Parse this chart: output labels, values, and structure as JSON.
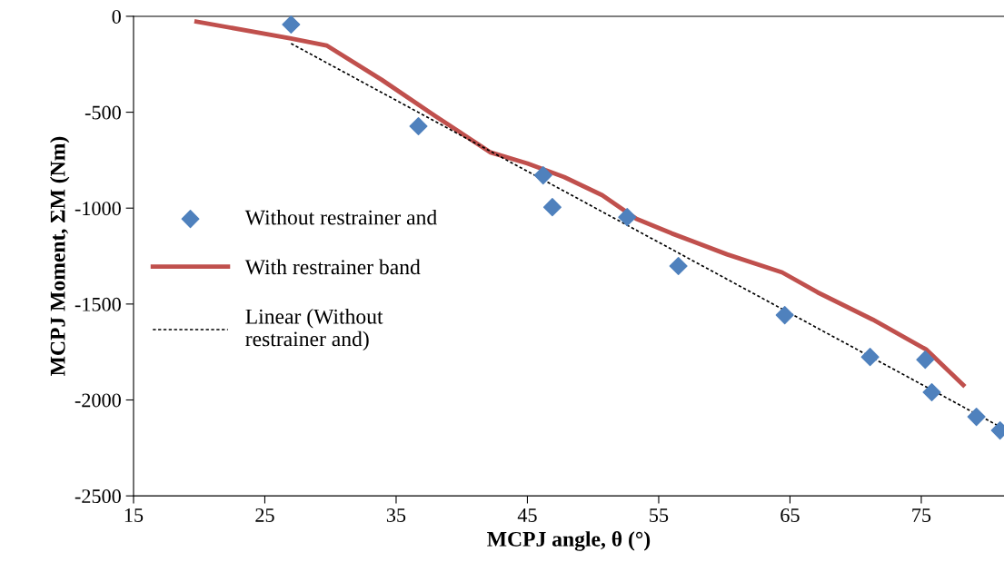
{
  "chart_data": {
    "type": "scatter",
    "xlabel": "MCPJ angle, θ (°)",
    "ylabel": "MCPJ Moment, ΣM (Nm)",
    "xlim": [
      15,
      81.3
    ],
    "xticks": [
      15,
      25,
      35,
      45,
      55,
      65,
      75
    ],
    "ylim": [
      -2500,
      0
    ],
    "yticks": [
      -2500,
      -2000,
      -1500,
      -1000,
      -500,
      0
    ],
    "grid": false,
    "legend": "left",
    "series": [
      {
        "name": "Without restrainer and",
        "marker": "diamond",
        "color": "#4f81bd",
        "x": [
          27.0,
          36.7,
          46.2,
          46.9,
          52.6,
          56.5,
          64.6,
          71.1,
          75.3,
          75.8,
          79.2,
          81.0
        ],
        "values": [
          -43,
          -573,
          -829,
          -995,
          -1047,
          -1302,
          -1558,
          -1776,
          -1790,
          -1960,
          -2088,
          -2159
        ]
      },
      {
        "name": "With restrainer band",
        "type": "line",
        "marker": "none",
        "line_style": "solid",
        "color": "#c0504d",
        "x": [
          19.8,
          26.9,
          29.7,
          33.9,
          38.0,
          42.2,
          45.0,
          47.8,
          50.7,
          53.3,
          56.0,
          60.2,
          64.4,
          67.1,
          71.3,
          75.4,
          78.2
        ],
        "values": [
          -28,
          -114,
          -152,
          -331,
          -521,
          -710,
          -767,
          -838,
          -933,
          -1056,
          -1132,
          -1241,
          -1335,
          -1439,
          -1581,
          -1738,
          -1922
        ]
      },
      {
        "name": "Linear (Without\nrestrainer and)",
        "type": "line",
        "marker": "none",
        "line_style": "dotted",
        "color": "#000000",
        "x": [
          27.0,
          81.0
        ],
        "values": [
          -142,
          -2140
        ]
      }
    ]
  }
}
